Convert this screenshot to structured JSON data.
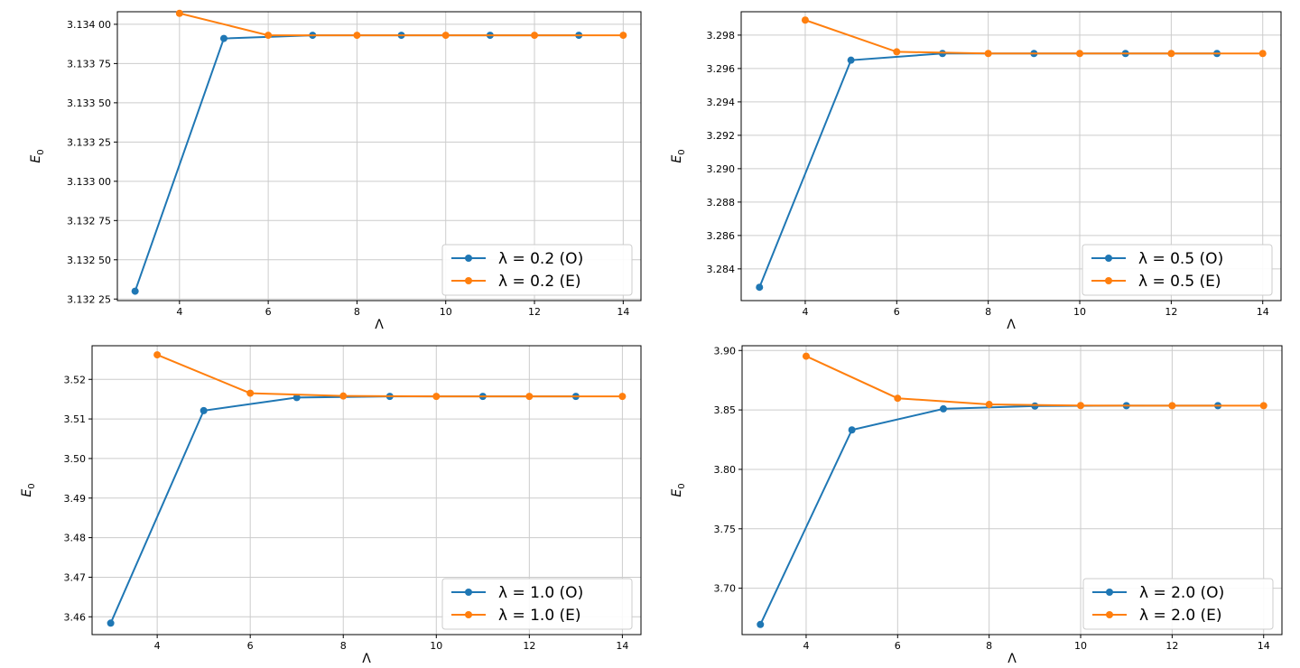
{
  "colors": {
    "series_o": "#1f77b4",
    "series_e": "#ff7f0e",
    "grid": "#cccccc"
  },
  "chart_data": [
    {
      "type": "line",
      "xlabel": "Λ",
      "ylabel": "E",
      "ylabel_sub": "0",
      "xlim": [
        2.6,
        14.4
      ],
      "ylim": [
        3.13224,
        3.13408
      ],
      "xticks": [
        4,
        6,
        8,
        10,
        12,
        14
      ],
      "xtick_labels": [
        "4",
        "6",
        "8",
        "10",
        "12",
        "14"
      ],
      "yticks": [
        3.13225,
        3.1325,
        3.13275,
        3.133,
        3.13325,
        3.1335,
        3.13375,
        3.134
      ],
      "ytick_labels": [
        "3.132 25",
        "3.132 50",
        "3.132 75",
        "3.133 00",
        "3.133 25",
        "3.133 50",
        "3.133 75",
        "3.134 00"
      ],
      "grid": true,
      "legend_position": "lower-right",
      "series": [
        {
          "name": "λ = 0.2 (O)",
          "x": [
            3,
            5,
            7,
            9,
            11,
            13
          ],
          "y": [
            3.1323,
            3.13391,
            3.13393,
            3.13393,
            3.13393,
            3.13393
          ]
        },
        {
          "name": "λ = 0.2 (E)",
          "x": [
            4,
            6,
            8,
            10,
            12,
            14
          ],
          "y": [
            3.13407,
            3.13393,
            3.13393,
            3.13393,
            3.13393,
            3.13393
          ]
        }
      ]
    },
    {
      "type": "line",
      "xlabel": "Λ",
      "ylabel": "E",
      "ylabel_sub": "0",
      "xlim": [
        2.6,
        14.4
      ],
      "ylim": [
        3.2821,
        3.2994
      ],
      "xticks": [
        4,
        6,
        8,
        10,
        12,
        14
      ],
      "xtick_labels": [
        "4",
        "6",
        "8",
        "10",
        "12",
        "14"
      ],
      "yticks": [
        3.284,
        3.286,
        3.288,
        3.29,
        3.292,
        3.294,
        3.296,
        3.298
      ],
      "ytick_labels": [
        "3.284",
        "3.286",
        "3.288",
        "3.290",
        "3.292",
        "3.294",
        "3.296",
        "3.298"
      ],
      "grid": true,
      "legend_position": "lower-right",
      "series": [
        {
          "name": "λ = 0.5 (O)",
          "x": [
            3,
            5,
            7,
            9,
            11,
            13
          ],
          "y": [
            3.2829,
            3.2965,
            3.2969,
            3.2969,
            3.2969,
            3.2969
          ]
        },
        {
          "name": "λ = 0.5 (E)",
          "x": [
            4,
            6,
            8,
            10,
            12,
            14
          ],
          "y": [
            3.2989,
            3.297,
            3.2969,
            3.2969,
            3.2969,
            3.2969
          ]
        }
      ]
    },
    {
      "type": "line",
      "xlabel": "Λ",
      "ylabel": "E",
      "ylabel_sub": "0",
      "xlim": [
        2.6,
        14.4
      ],
      "ylim": [
        3.4555,
        3.5285
      ],
      "xticks": [
        4,
        6,
        8,
        10,
        12,
        14
      ],
      "xtick_labels": [
        "4",
        "6",
        "8",
        "10",
        "12",
        "14"
      ],
      "yticks": [
        3.46,
        3.47,
        3.48,
        3.49,
        3.5,
        3.51,
        3.52
      ],
      "ytick_labels": [
        "3.46",
        "3.47",
        "3.48",
        "3.49",
        "3.50",
        "3.51",
        "3.52"
      ],
      "grid": true,
      "legend_position": "lower-right",
      "series": [
        {
          "name": "λ = 1.0 (O)",
          "x": [
            3,
            5,
            7,
            9,
            11,
            13
          ],
          "y": [
            3.4584,
            3.5121,
            3.5154,
            3.5157,
            3.5157,
            3.5157
          ]
        },
        {
          "name": "λ = 1.0 (E)",
          "x": [
            4,
            6,
            8,
            10,
            12,
            14
          ],
          "y": [
            3.5262,
            3.5165,
            3.5158,
            3.5157,
            3.5157,
            3.5157
          ]
        }
      ]
    },
    {
      "type": "line",
      "xlabel": "Λ",
      "ylabel": "E",
      "ylabel_sub": "0",
      "xlim": [
        2.6,
        14.4
      ],
      "ylim": [
        3.661,
        3.904
      ],
      "xticks": [
        4,
        6,
        8,
        10,
        12,
        14
      ],
      "xtick_labels": [
        "4",
        "6",
        "8",
        "10",
        "12",
        "14"
      ],
      "yticks": [
        3.7,
        3.75,
        3.8,
        3.85,
        3.9
      ],
      "ytick_labels": [
        "3.70",
        "3.75",
        "3.80",
        "3.85",
        "3.90"
      ],
      "grid": true,
      "legend_position": "lower-right",
      "series": [
        {
          "name": "λ = 2.0 (O)",
          "x": [
            3,
            5,
            7,
            9,
            11,
            13
          ],
          "y": [
            3.6695,
            3.8332,
            3.8509,
            3.8533,
            3.8536,
            3.8536
          ]
        },
        {
          "name": "λ = 2.0 (E)",
          "x": [
            4,
            6,
            8,
            10,
            12,
            14
          ],
          "y": [
            3.8952,
            3.8598,
            3.8546,
            3.8537,
            3.8536,
            3.8536
          ]
        }
      ]
    }
  ]
}
